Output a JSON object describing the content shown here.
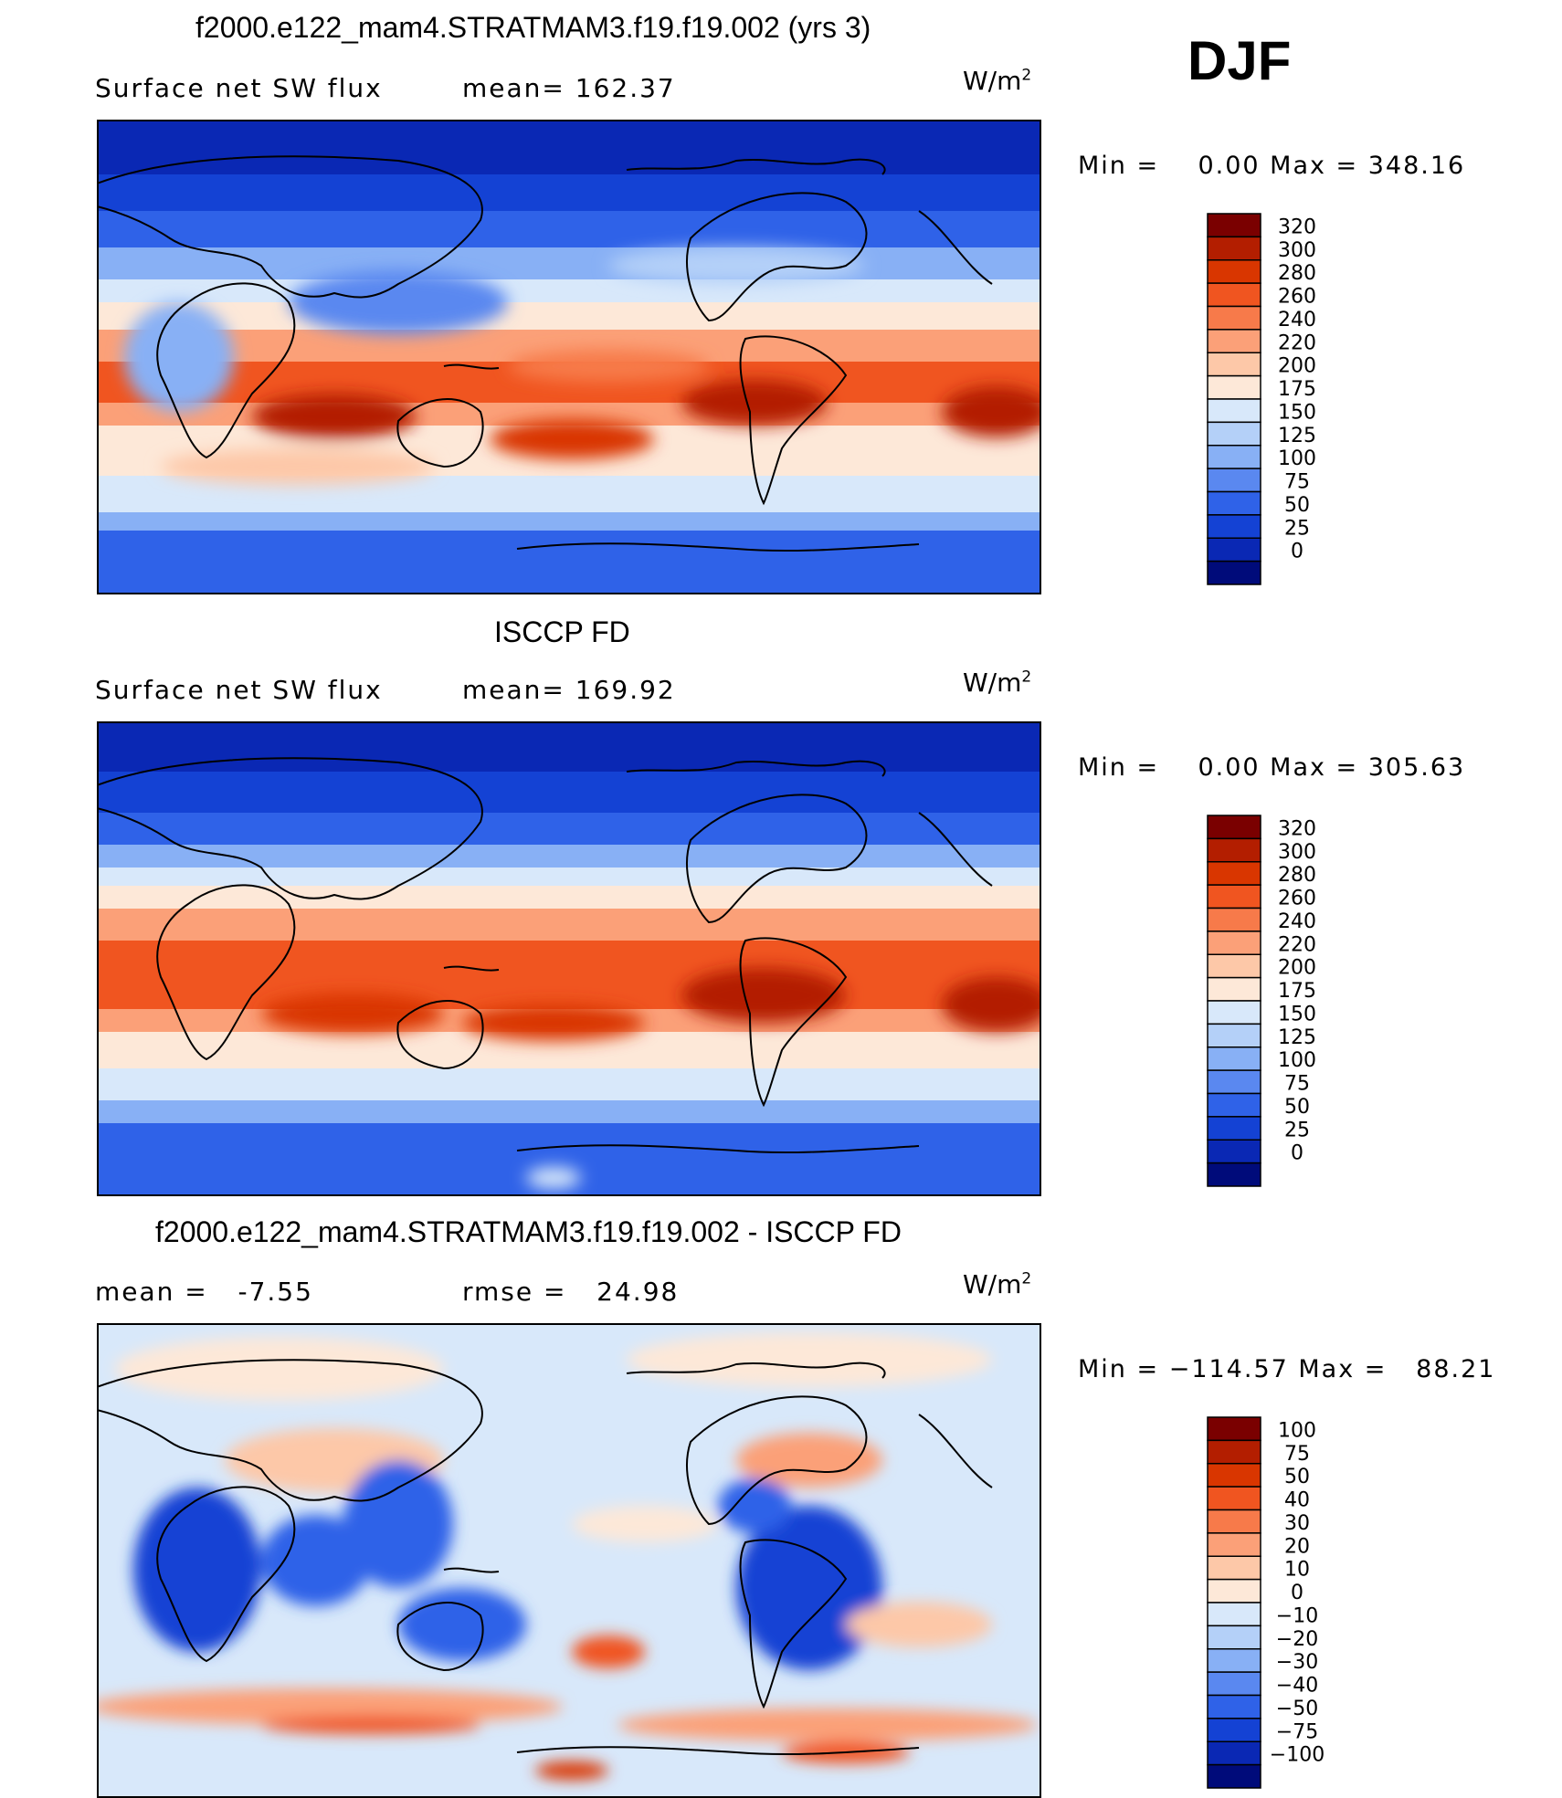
{
  "season": "DJF",
  "panels": [
    {
      "title": "f2000.e122_mam4.STRATMAM3.f19.f19.002 (yrs 3)",
      "variable": "Surface net SW flux",
      "stat": "mean= 162.37",
      "unit_base": "W/m",
      "unit_exp": "2",
      "minmax": "Min =    0.00 Max = 348.16",
      "colorbar_labels": [
        "320",
        "300",
        "280",
        "260",
        "240",
        "220",
        "200",
        "175",
        "150",
        "125",
        "100",
        "75",
        "50",
        "25",
        "0"
      ]
    },
    {
      "title": "ISCCP FD",
      "variable": "Surface net SW flux",
      "stat": "mean= 169.92",
      "unit_base": "W/m",
      "unit_exp": "2",
      "minmax": "Min =    0.00 Max = 305.63",
      "colorbar_labels": [
        "320",
        "300",
        "280",
        "260",
        "240",
        "220",
        "200",
        "175",
        "150",
        "125",
        "100",
        "75",
        "50",
        "25",
        "0"
      ]
    },
    {
      "title": "f2000.e122_mam4.STRATMAM3.f19.f19.002 - ISCCP FD",
      "variable": "mean =   -7.55",
      "stat": "rmse =   24.98",
      "unit_base": "W/m",
      "unit_exp": "2",
      "minmax": "Min = −114.57 Max =   88.21",
      "colorbar_labels": [
        "100",
        "75",
        "50",
        "40",
        "30",
        "20",
        "10",
        "0",
        "−10",
        "−20",
        "−30",
        "−40",
        "−50",
        "−75",
        "−100"
      ]
    }
  ],
  "colors": {
    "colorbar": [
      "#7a0000",
      "#b31e00",
      "#d93600",
      "#f05520",
      "#f77a4a",
      "#fba078",
      "#fdc8a8",
      "#fde8d8",
      "#d8e8fa",
      "#b4d0f8",
      "#88b0f5",
      "#5a88f0",
      "#2f62e8",
      "#1442d4",
      "#0a28b4",
      "#000b7a"
    ]
  },
  "chart_data": [
    {
      "type": "heatmap",
      "title": "f2000.e122_mam4.STRATMAM3.f19.f19.002 (yrs 3)",
      "variable": "Surface net SW flux",
      "unit": "W/m2",
      "season": "DJF",
      "mean": 162.37,
      "min": 0.0,
      "max": 348.16,
      "levels": [
        0,
        25,
        50,
        75,
        100,
        125,
        150,
        175,
        200,
        220,
        240,
        260,
        280,
        300,
        320
      ],
      "zonal_profile_approx": {
        "lat": [
          80,
          60,
          45,
          30,
          15,
          0,
          -15,
          -30,
          -45,
          -60,
          -75
        ],
        "value": [
          0,
          10,
          60,
          120,
          170,
          220,
          270,
          230,
          170,
          150,
          50
        ]
      }
    },
    {
      "type": "heatmap",
      "title": "ISCCP FD",
      "variable": "Surface net SW flux",
      "unit": "W/m2",
      "season": "DJF",
      "mean": 169.92,
      "min": 0.0,
      "max": 305.63,
      "levels": [
        0,
        25,
        50,
        75,
        100,
        125,
        150,
        175,
        200,
        220,
        240,
        260,
        280,
        300,
        320
      ],
      "zonal_profile_approx": {
        "lat": [
          80,
          60,
          45,
          30,
          15,
          0,
          -15,
          -30,
          -45,
          -60,
          -75
        ],
        "value": [
          0,
          15,
          70,
          150,
          200,
          230,
          260,
          240,
          180,
          150,
          60
        ]
      }
    },
    {
      "type": "heatmap",
      "title": "f2000.e122_mam4.STRATMAM3.f19.f19.002 - ISCCP FD",
      "unit": "W/m2",
      "season": "DJF",
      "mean": -7.55,
      "rmse": 24.98,
      "min": -114.57,
      "max": 88.21,
      "levels": [
        -100,
        -75,
        -50,
        -40,
        -30,
        -20,
        -10,
        0,
        10,
        20,
        30,
        40,
        50,
        75,
        100
      ]
    }
  ]
}
